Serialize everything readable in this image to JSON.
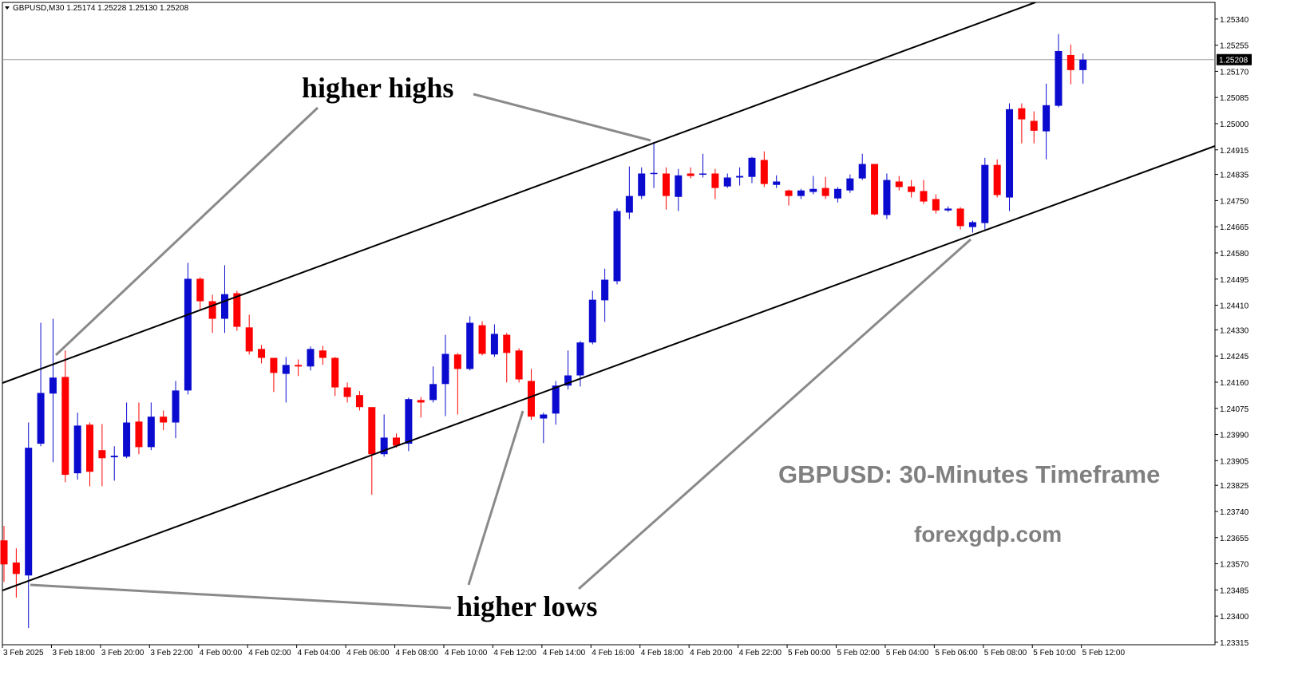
{
  "chart_data": {
    "type": "candlestick",
    "header": "GBPUSD,M30  1.25174 1.25228 1.25130 1.25208",
    "annotations": [
      "higher highs",
      "higher lows",
      "GBPUSD: 30-Minutes Timeframe",
      "forexgdp.com"
    ],
    "categories": [
      "3 Feb 2025",
      null,
      null,
      null,
      "3 Feb 18:00",
      null,
      null,
      null,
      "3 Feb 20:00",
      null,
      null,
      null,
      "3 Feb 22:00",
      null,
      null,
      null,
      "4 Feb 00:00",
      null,
      null,
      null,
      "4 Feb 02:00",
      null,
      null,
      null,
      "4 Feb 04:00",
      null,
      null,
      null,
      "4 Feb 06:00",
      null,
      null,
      null,
      "4 Feb 08:00",
      null,
      null,
      null,
      "4 Feb 10:00",
      null,
      null,
      null,
      "4 Feb 12:00",
      null,
      null,
      null,
      "4 Feb 14:00",
      null,
      null,
      null,
      "4 Feb 16:00",
      null,
      null,
      null,
      "4 Feb 18:00",
      null,
      null,
      null,
      "4 Feb 20:00",
      null,
      null,
      null,
      "4 Feb 22:00",
      null,
      null,
      null,
      "5 Feb 00:00",
      null,
      null,
      null,
      "5 Feb 02:00",
      null,
      null,
      null,
      "5 Feb 04:00",
      null,
      null,
      null,
      "5 Feb 06:00",
      null,
      null,
      null,
      "5 Feb 08:00",
      null,
      null,
      null,
      "5 Feb 10:00",
      null,
      null,
      null,
      "5 Feb 12:00"
    ],
    "open": [
      1.23646,
      1.23574,
      1.23532,
      1.2396,
      1.24123,
      1.24177,
      1.23864,
      1.24022,
      1.23939,
      1.23916,
      1.23918,
      1.24032,
      1.23949,
      1.24048,
      1.24029,
      1.24133,
      1.24496,
      1.24423,
      1.24366,
      1.24449,
      1.24338,
      1.24268,
      1.24239,
      1.24187,
      1.24216,
      1.24211,
      1.24263,
      1.24239,
      1.24143,
      1.24118,
      1.24079,
      1.23926,
      1.2398,
      1.2396,
      1.24102,
      1.24102,
      1.24154,
      1.2425,
      1.24203,
      1.24345,
      1.2425,
      1.24314,
      1.24263,
      1.24164,
      1.24042,
      1.24058,
      1.24149,
      1.24182,
      1.24289,
      1.24426,
      1.24488,
      1.24711,
      1.24765,
      1.24838,
      1.24838,
      1.24762,
      1.24838,
      1.24835,
      1.24838,
      1.24796,
      1.24825,
      1.24827,
      1.24882,
      1.24801,
      1.24783,
      1.24765,
      1.24778,
      1.24791,
      1.24757,
      1.24783,
      1.24822,
      1.24869,
      1.24703,
      1.24812,
      1.24796,
      1.24781,
      1.24755,
      1.24718,
      1.24724,
      1.24664,
      1.24677,
      1.24866,
      1.2476,
      1.2505,
      1.25009,
      1.24975,
      1.25058,
      1.25223,
      1.25174
    ],
    "high": [
      1.23693,
      1.2362,
      1.24029,
      1.24353,
      1.24366,
      1.24263,
      1.24061,
      1.24029,
      1.24024,
      1.23952,
      1.24094,
      1.24094,
      1.24094,
      1.24068,
      1.24164,
      1.24548,
      1.24501,
      1.24444,
      1.2454,
      1.24457,
      1.24379,
      1.24281,
      1.24239,
      1.24242,
      1.24234,
      1.24276,
      1.24278,
      1.24242,
      1.24159,
      1.24131,
      1.24079,
      1.24055,
      1.23993,
      1.2411,
      1.24112,
      1.24211,
      1.24314,
      1.24255,
      1.24374,
      1.24358,
      1.24348,
      1.2432,
      1.2427,
      1.24203,
      1.24061,
      1.24164,
      1.24263,
      1.24294,
      1.24457,
      1.24529,
      1.24724,
      1.24861,
      1.24858,
      1.24941,
      1.24858,
      1.24853,
      1.24858,
      1.24902,
      1.24853,
      1.24838,
      1.24858,
      1.24892,
      1.2491,
      1.24832,
      1.24786,
      1.24788,
      1.2483,
      1.24827,
      1.24794,
      1.24835,
      1.24902,
      1.24869,
      1.24838,
      1.2483,
      1.24817,
      1.24817,
      1.2477,
      1.24731,
      1.24729,
      1.24685,
      1.24889,
      1.24884,
      1.25066,
      1.25066,
      1.2504,
      1.2513,
      1.25291,
      1.25257,
      1.25228
    ],
    "low": [
      1.23511,
      1.2346,
      1.23361,
      1.23952,
      1.239,
      1.23835,
      1.23843,
      1.23822,
      1.23822,
      1.2384,
      1.23913,
      1.23926,
      1.23939,
      1.24004,
      1.23978,
      1.2412,
      1.24392,
      1.2432,
      1.2432,
      1.24327,
      1.2425,
      1.24221,
      1.24128,
      1.24094,
      1.2418,
      1.24198,
      1.24216,
      1.24115,
      1.24094,
      1.24068,
      1.23794,
      1.23918,
      1.23947,
      1.23936,
      1.24045,
      1.24094,
      1.2405,
      1.24055,
      1.24198,
      1.24247,
      1.24242,
      1.24159,
      1.24159,
      1.24037,
      1.23962,
      1.24022,
      1.24136,
      1.24146,
      1.24283,
      1.24356,
      1.24478,
      1.2469,
      1.24755,
      1.24791,
      1.24721,
      1.24716,
      1.24822,
      1.24825,
      1.24755,
      1.24791,
      1.24799,
      1.24807,
      1.24794,
      1.24791,
      1.24734,
      1.24755,
      1.2477,
      1.24755,
      1.24744,
      1.24775,
      1.24817,
      1.24703,
      1.2469,
      1.24783,
      1.2476,
      1.24739,
      1.24708,
      1.24713,
      1.24656,
      1.24646,
      1.24656,
      1.2476,
      1.24716,
      1.24936,
      1.24936,
      1.24884,
      1.25053,
      1.25128,
      1.2513
    ],
    "close": [
      1.23568,
      1.23537,
      1.23947,
      1.24125,
      1.24175,
      1.23859,
      1.24019,
      1.23869,
      1.23913,
      1.23921,
      1.24029,
      1.23949,
      1.24048,
      1.24029,
      1.24133,
      1.24496,
      1.24423,
      1.24366,
      1.24446,
      1.2434,
      1.2426,
      1.24239,
      1.2419,
      1.24216,
      1.24211,
      1.24268,
      1.24239,
      1.24143,
      1.24112,
      1.24079,
      1.23926,
      1.2398,
      1.23954,
      1.24105,
      1.24094,
      1.24154,
      1.24252,
      1.24203,
      1.24353,
      1.24252,
      1.24317,
      1.24255,
      1.24169,
      1.24048,
      1.24055,
      1.24149,
      1.24182,
      1.24289,
      1.24428,
      1.24493,
      1.24716,
      1.24765,
      1.24838,
      1.2484,
      1.24765,
      1.24832,
      1.2483,
      1.24838,
      1.24791,
      1.24825,
      1.2483,
      1.24889,
      1.24804,
      1.24812,
      1.24765,
      1.24783,
      1.24788,
      1.24765,
      1.24788,
      1.24822,
      1.24869,
      1.24705,
      1.24817,
      1.24794,
      1.24778,
      1.24747,
      1.24718,
      1.24724,
      1.24667,
      1.2468,
      1.24866,
      1.24768,
      1.25047,
      1.25014,
      1.24977,
      1.2506,
      1.25236,
      1.25174,
      1.25208
    ],
    "up_color": "#0b0bd0",
    "down_color": "#ff0000",
    "ylim": [
      1.23307,
      1.25394
    ],
    "yticks": [
      {
        "value": 1.2534,
        "label": "1.25340"
      },
      {
        "value": 1.25255,
        "label": "1.25255"
      },
      {
        "value": 1.2517,
        "label": "1.25170"
      },
      {
        "value": 1.25085,
        "label": "1.25085"
      },
      {
        "value": 1.25,
        "label": "1.25000"
      },
      {
        "value": 1.24915,
        "label": "1.24915"
      },
      {
        "value": 1.24835,
        "label": "1.24835"
      },
      {
        "value": 1.2475,
        "label": "1.24750"
      },
      {
        "value": 1.24665,
        "label": "1.24665"
      },
      {
        "value": 1.2458,
        "label": "1.24580"
      },
      {
        "value": 1.24495,
        "label": "1.24495"
      },
      {
        "value": 1.2441,
        "label": "1.24410"
      },
      {
        "value": 1.2433,
        "label": "1.24330"
      },
      {
        "value": 1.24245,
        "label": "1.24245"
      },
      {
        "value": 1.2416,
        "label": "1.24160"
      },
      {
        "value": 1.24075,
        "label": "1.24075"
      },
      {
        "value": 1.2399,
        "label": "1.23990"
      },
      {
        "value": 1.23905,
        "label": "1.23905"
      },
      {
        "value": 1.23825,
        "label": "1.23825"
      },
      {
        "value": 1.2374,
        "label": "1.23740"
      },
      {
        "value": 1.23655,
        "label": "1.23655"
      },
      {
        "value": 1.2357,
        "label": "1.23570"
      },
      {
        "value": 1.23485,
        "label": "1.23485"
      },
      {
        "value": 1.234,
        "label": "1.23400"
      },
      {
        "value": 1.23315,
        "label": "1.23315"
      }
    ],
    "current_price": {
      "value": 1.25208,
      "label": "1.25208"
    }
  }
}
